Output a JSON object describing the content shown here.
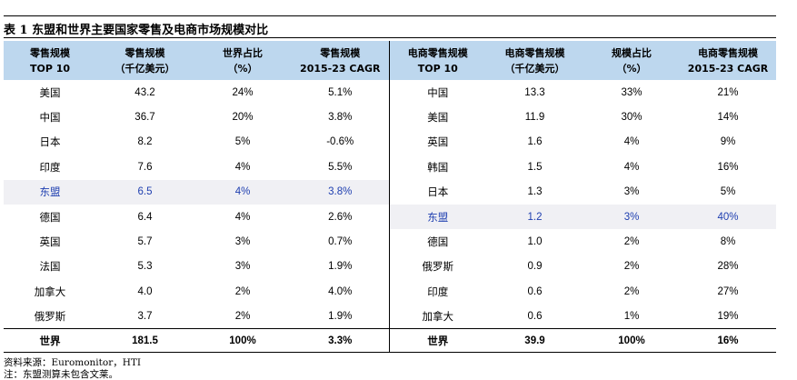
{
  "title": "表 1 东盟和世界主要国家零售及电商市场规模对比",
  "headers": [
    [
      "零售规模",
      "TOP 10"
    ],
    [
      "零售规模",
      "（千亿美元）"
    ],
    [
      "世界占比",
      "（%）"
    ],
    [
      "零售规模",
      "2015-23 CAGR"
    ],
    [
      "电商零售规模",
      "TOP 10"
    ],
    [
      "电商零售规模",
      "（千亿美元）"
    ],
    [
      "规模占比",
      "（%）"
    ],
    [
      "电商零售规模",
      "2015-23 CAGR"
    ]
  ],
  "rows": [
    {
      "left": [
        "美国",
        "43.2",
        "24%",
        "5.1%"
      ],
      "right": [
        "中国",
        "13.3",
        "33%",
        "21%"
      ],
      "hl_left": false,
      "hl_right": false
    },
    {
      "left": [
        "中国",
        "36.7",
        "20%",
        "3.8%"
      ],
      "right": [
        "美国",
        "11.9",
        "30%",
        "14%"
      ],
      "hl_left": false,
      "hl_right": false
    },
    {
      "left": [
        "日本",
        "8.2",
        "5%",
        "-0.6%"
      ],
      "right": [
        "英国",
        "1.6",
        "4%",
        "9%"
      ],
      "hl_left": false,
      "hl_right": false
    },
    {
      "left": [
        "印度",
        "7.6",
        "4%",
        "5.5%"
      ],
      "right": [
        "韩国",
        "1.5",
        "4%",
        "16%"
      ],
      "hl_left": false,
      "hl_right": false
    },
    {
      "left": [
        "东盟",
        "6.5",
        "4%",
        "3.8%"
      ],
      "right": [
        "日本",
        "1.3",
        "3%",
        "5%"
      ],
      "hl_left": true,
      "hl_right": false
    },
    {
      "left": [
        "德国",
        "6.4",
        "4%",
        "2.6%"
      ],
      "right": [
        "东盟",
        "1.2",
        "3%",
        "40%"
      ],
      "hl_left": false,
      "hl_right": true
    },
    {
      "left": [
        "英国",
        "5.7",
        "3%",
        "0.7%"
      ],
      "right": [
        "德国",
        "1.0",
        "2%",
        "8%"
      ],
      "hl_left": false,
      "hl_right": false
    },
    {
      "left": [
        "法国",
        "5.3",
        "3%",
        "1.9%"
      ],
      "right": [
        "俄罗斯",
        "0.9",
        "2%",
        "28%"
      ],
      "hl_left": false,
      "hl_right": false
    },
    {
      "left": [
        "加拿大",
        "4.0",
        "2%",
        "4.0%"
      ],
      "right": [
        "印度",
        "0.6",
        "2%",
        "27%"
      ],
      "hl_left": false,
      "hl_right": false
    },
    {
      "left": [
        "俄罗斯",
        "3.7",
        "2%",
        "1.9%"
      ],
      "right": [
        "加拿大",
        "0.6",
        "1%",
        "19%"
      ],
      "hl_left": false,
      "hl_right": false
    }
  ],
  "total": {
    "left": [
      "世界",
      "181.5",
      "100%",
      "3.3%"
    ],
    "right": [
      "世界",
      "39.9",
      "100%",
      "16%"
    ]
  },
  "notes": [
    "资料来源：Euromonitor，HTI",
    "注：东盟测算未包含文莱。"
  ]
}
